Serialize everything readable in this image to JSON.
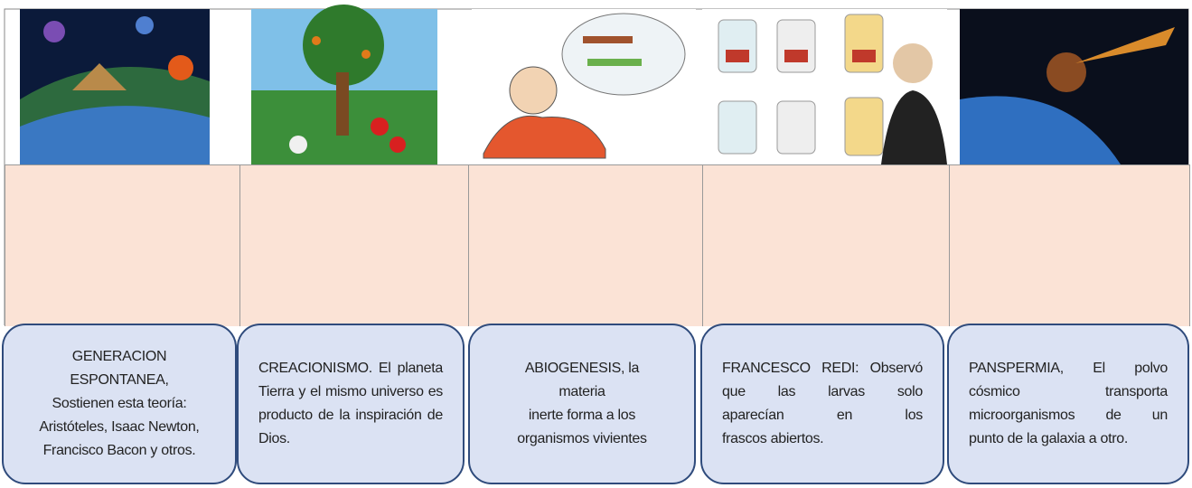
{
  "cards": [
    {
      "lines": [
        "GENERACION ESPONTANEA,",
        "Sostienen esta teoría:",
        "Aristóteles, Isaac Newton,",
        "Francisco Bacon y otros."
      ]
    },
    {
      "lines": [
        "CREACIONISMO. El planeta",
        "Tierra y el mismo universo es",
        "producto de la inspiración de",
        "Dios."
      ]
    },
    {
      "lines": [
        "ABIOGENESIS, la",
        "materia",
        "inerte forma a los",
        "organismos vivientes"
      ]
    },
    {
      "lines": [
        "FRANCESCO REDI: Observó",
        "que las larvas solo",
        "aparecían en los",
        "frascos abiertos."
      ]
    },
    {
      "lines": [
        "PANSPERMIA, El polvo",
        "cósmico transporta",
        "microorganismos de un",
        "punto de la galaxia a otro."
      ]
    }
  ]
}
